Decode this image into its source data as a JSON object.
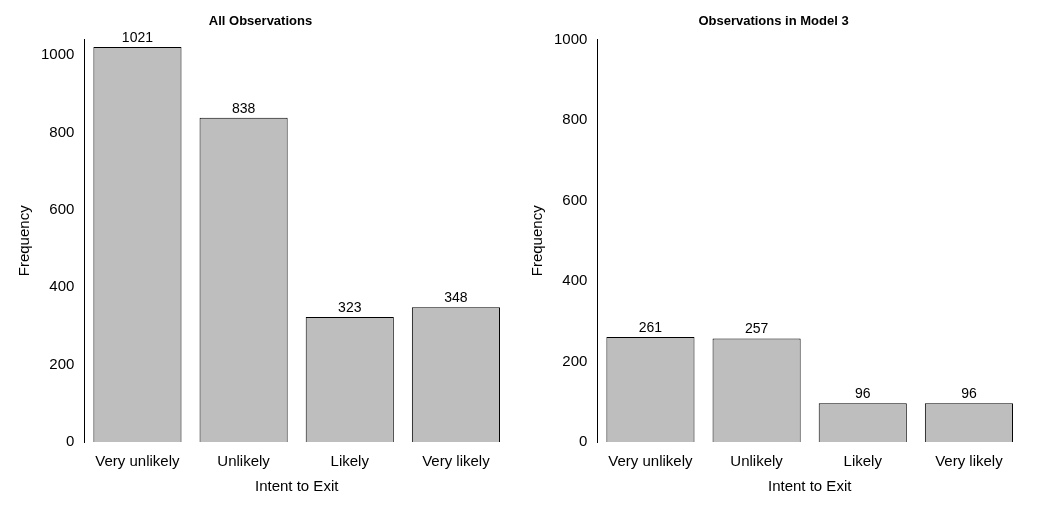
{
  "chart_data": [
    {
      "type": "bar",
      "title": "All Observations",
      "xlabel": "Intent to Exit",
      "ylabel": "Frequency",
      "categories": [
        "Very unlikely",
        "Unlikely",
        "Likely",
        "Very likely"
      ],
      "values": [
        1021,
        838,
        323,
        348
      ],
      "color": "#bebebe",
      "ylim": [
        0,
        1040
      ],
      "yticks": [
        0,
        200,
        400,
        600,
        800,
        1000
      ],
      "data_labels": true,
      "grid": false
    },
    {
      "type": "bar",
      "title": "Observations in Model 3",
      "xlabel": "Intent to Exit",
      "ylabel": "Frequency",
      "categories": [
        "Very unlikely",
        "Unlikely",
        "Likely",
        "Very likely"
      ],
      "values": [
        261,
        257,
        96,
        96
      ],
      "color": "#bebebe",
      "ylim": [
        0,
        1000
      ],
      "yticks": [
        0,
        200,
        400,
        600,
        800,
        1000
      ],
      "data_labels": true,
      "grid": false
    }
  ]
}
